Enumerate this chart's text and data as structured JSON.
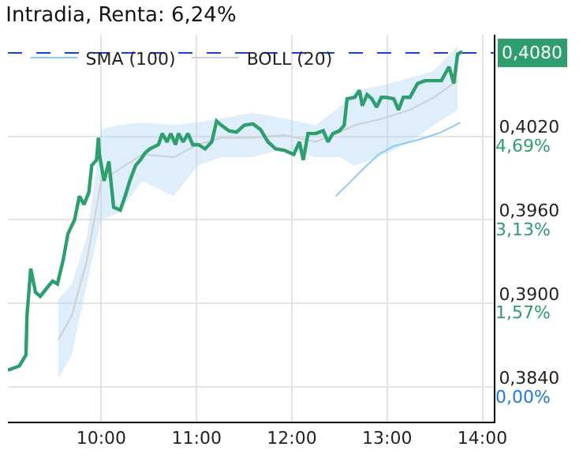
{
  "chart_data": {
    "type": "line",
    "title": "Intradia, Renta: 6,24%",
    "xlim": [
      9.02,
      14.12
    ],
    "xticks": [
      {
        "value": 10,
        "label": "10:00"
      },
      {
        "value": 11,
        "label": "11:00"
      },
      {
        "value": 12,
        "label": "12:00"
      },
      {
        "value": 13,
        "label": "13:00"
      },
      {
        "value": 14,
        "label": "14:00"
      }
    ],
    "ylim": [
      0.3815,
      0.4093
    ],
    "yticks": [
      {
        "value": 0.384,
        "label": "0,3840"
      },
      {
        "value": 0.39,
        "label": "0,3900"
      },
      {
        "value": 0.396,
        "label": "0,3960"
      },
      {
        "value": 0.402,
        "label": "0,4020"
      }
    ],
    "y2lim": [
      -0.65,
      6.59
    ],
    "y2ticks": [
      {
        "value": 0,
        "label": "0,00%"
      },
      {
        "value": 1.57,
        "label": "1,57%"
      },
      {
        "value": 3.13,
        "label": "3,13%"
      },
      {
        "value": 4.69,
        "label": "4,69%"
      }
    ],
    "grid": true,
    "legend": "top left",
    "marker": "none",
    "line_style": "solid",
    "ref_lines": [
      {
        "axis": "y",
        "value": 0.408,
        "label": "0,4080",
        "color": "#1a3fd6",
        "line_style": "dashed"
      }
    ],
    "series": [
      {
        "name": "BOLL (20)",
        "color": "#cfcfcf",
        "x": [
          9.55,
          9.69,
          9.85,
          10.0,
          10.18,
          10.43,
          10.76,
          11.01,
          11.26,
          11.59,
          11.92,
          12.25,
          12.5,
          12.66,
          12.91,
          13.24,
          13.49,
          13.74
        ],
        "values": [
          0.3874,
          0.3891,
          0.3931,
          0.3988,
          0.3996,
          0.4007,
          0.4005,
          0.4014,
          0.4019,
          0.4019,
          0.4021,
          0.4016,
          0.4023,
          0.4028,
          0.4032,
          0.4039,
          0.4048,
          0.406
        ],
        "lower": [
          0.3846,
          0.3863,
          0.3914,
          0.396,
          0.3965,
          0.3988,
          0.3977,
          0.3999,
          0.4005,
          0.4005,
          0.4011,
          0.4005,
          0.4005,
          0.3999,
          0.4005,
          0.4016,
          0.4028,
          0.4039
        ],
        "upper": [
          0.3903,
          0.3914,
          0.3948,
          0.4025,
          0.4028,
          0.403,
          0.4028,
          0.403,
          0.4033,
          0.4037,
          0.4033,
          0.4028,
          0.4041,
          0.4053,
          0.4056,
          0.4062,
          0.4067,
          0.4085
        ]
      },
      {
        "name": "SMA (100)",
        "color": "#8ec9f5",
        "x": [
          12.46,
          12.58,
          12.74,
          12.91,
          13.07,
          13.24,
          13.4,
          13.57,
          13.77
        ],
        "values": [
          0.3977,
          0.3985,
          0.3996,
          0.4007,
          0.4013,
          0.4016,
          0.4019,
          0.4023,
          0.403
        ]
      },
      {
        "color": "#2e9e6e",
        "x": [
          9.02,
          9.14,
          9.21,
          9.22,
          9.26,
          9.31,
          9.36,
          9.44,
          9.49,
          9.54,
          9.6,
          9.65,
          9.72,
          9.77,
          9.82,
          9.87,
          9.9,
          9.95,
          9.97,
          9.98,
          10.03,
          10.08,
          10.13,
          10.2,
          10.25,
          10.3,
          10.36,
          10.41,
          10.46,
          10.51,
          10.6,
          10.64,
          10.69,
          10.73,
          10.78,
          10.81,
          10.86,
          10.91,
          10.96,
          11.02,
          11.09,
          11.16,
          11.21,
          11.26,
          11.34,
          11.42,
          11.5,
          11.59,
          11.67,
          11.75,
          11.83,
          11.92,
          12.02,
          12.08,
          12.12,
          12.17,
          12.25,
          12.33,
          12.38,
          12.43,
          12.5,
          12.55,
          12.58,
          12.66,
          12.71,
          12.74,
          12.79,
          12.84,
          12.89,
          12.94,
          12.99,
          13.07,
          13.12,
          13.17,
          13.24,
          13.32,
          13.4,
          13.49,
          13.57,
          13.65,
          13.7,
          13.74,
          13.79
        ],
        "values": [
          0.3852,
          0.3855,
          0.3863,
          0.3891,
          0.3925,
          0.3908,
          0.3905,
          0.3912,
          0.3916,
          0.3914,
          0.3931,
          0.395,
          0.396,
          0.3977,
          0.3971,
          0.398,
          0.3999,
          0.4003,
          0.4019,
          0.4007,
          0.3988,
          0.4002,
          0.3969,
          0.3967,
          0.3977,
          0.3988,
          0.3999,
          0.4003,
          0.4008,
          0.4011,
          0.4014,
          0.4022,
          0.4016,
          0.4022,
          0.4014,
          0.4022,
          0.4016,
          0.4022,
          0.4014,
          0.4014,
          0.4011,
          0.4016,
          0.4031,
          0.4028,
          0.4024,
          0.4023,
          0.4028,
          0.4029,
          0.4025,
          0.4016,
          0.4011,
          0.401,
          0.4007,
          0.4016,
          0.4003,
          0.4022,
          0.4022,
          0.4024,
          0.4016,
          0.4022,
          0.4024,
          0.4028,
          0.4047,
          0.4048,
          0.4053,
          0.4042,
          0.405,
          0.4047,
          0.4041,
          0.4048,
          0.4048,
          0.4047,
          0.4039,
          0.4048,
          0.4048,
          0.4058,
          0.406,
          0.406,
          0.406,
          0.407,
          0.4058,
          0.4079,
          0.4081
        ]
      }
    ]
  }
}
